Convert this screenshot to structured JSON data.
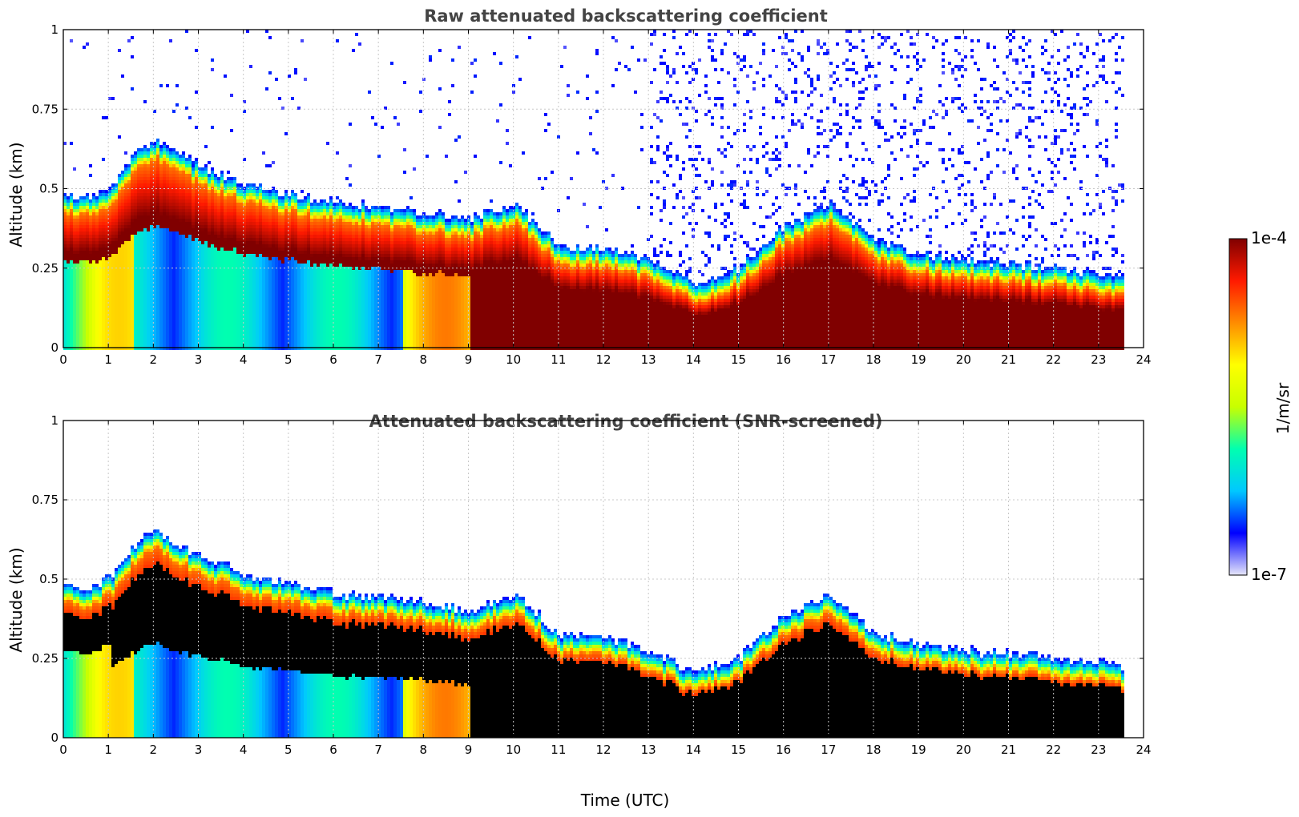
{
  "chart_data": [
    {
      "type": "heatmap",
      "title": "Raw attenuated backscattering coefficient",
      "xlabel": "",
      "ylabel": "Altitude (km)",
      "xlim": [
        0,
        24
      ],
      "ylim": [
        0,
        1
      ],
      "x_ticks": [
        "0",
        "1",
        "2",
        "3",
        "4",
        "5",
        "6",
        "7",
        "8",
        "9",
        "10",
        "11",
        "12",
        "13",
        "14",
        "15",
        "16",
        "17",
        "18",
        "19",
        "20",
        "21",
        "22",
        "23",
        "24"
      ],
      "y_ticks": [
        "0",
        "0.25",
        "0.5",
        "0.75",
        "1"
      ],
      "grid": true,
      "screened": false,
      "data_end_hour": 23.55,
      "layer_top_km_by_hour": [
        {
          "x": 0.5,
          "y": 0.42
        },
        {
          "x": 1,
          "y": 0.45
        },
        {
          "x": 1.5,
          "y": 0.55
        },
        {
          "x": 2,
          "y": 0.6
        },
        {
          "x": 3,
          "y": 0.52
        },
        {
          "x": 4,
          "y": 0.46
        },
        {
          "x": 5,
          "y": 0.43
        },
        {
          "x": 6,
          "y": 0.4
        },
        {
          "x": 7,
          "y": 0.39
        },
        {
          "x": 8,
          "y": 0.37
        },
        {
          "x": 9,
          "y": 0.35
        },
        {
          "x": 10,
          "y": 0.4
        },
        {
          "x": 11,
          "y": 0.27
        },
        {
          "x": 12,
          "y": 0.26
        },
        {
          "x": 13,
          "y": 0.22
        },
        {
          "x": 14,
          "y": 0.15
        },
        {
          "x": 15,
          "y": 0.2
        },
        {
          "x": 16,
          "y": 0.33
        },
        {
          "x": 17,
          "y": 0.4
        },
        {
          "x": 18,
          "y": 0.28
        },
        {
          "x": 19,
          "y": 0.24
        },
        {
          "x": 20,
          "y": 0.22
        },
        {
          "x": 21,
          "y": 0.21
        },
        {
          "x": 22,
          "y": 0.2
        },
        {
          "x": 23,
          "y": 0.18
        },
        {
          "x": 23.55,
          "y": 0.17
        }
      ]
    },
    {
      "type": "heatmap",
      "title": "Attenuated backscattering coefficient (SNR-screened)",
      "xlabel": "Time (UTC)",
      "ylabel": "Altitude (km)",
      "xlim": [
        0,
        24
      ],
      "ylim": [
        0,
        1
      ],
      "x_ticks": [
        "0",
        "1",
        "2",
        "3",
        "4",
        "5",
        "6",
        "7",
        "8",
        "9",
        "10",
        "11",
        "12",
        "13",
        "14",
        "15",
        "16",
        "17",
        "18",
        "19",
        "20",
        "21",
        "22",
        "23",
        "24"
      ],
      "y_ticks": [
        "0",
        "0.25",
        "0.5",
        "0.75",
        "1"
      ],
      "grid": true,
      "screened": true,
      "data_end_hour": 23.55,
      "layer_top_km_by_hour": [
        {
          "x": 0.5,
          "y": 0.42
        },
        {
          "x": 1,
          "y": 0.45
        },
        {
          "x": 1.5,
          "y": 0.55
        },
        {
          "x": 2,
          "y": 0.6
        },
        {
          "x": 3,
          "y": 0.52
        },
        {
          "x": 4,
          "y": 0.46
        },
        {
          "x": 5,
          "y": 0.43
        },
        {
          "x": 6,
          "y": 0.4
        },
        {
          "x": 7,
          "y": 0.39
        },
        {
          "x": 8,
          "y": 0.37
        },
        {
          "x": 9,
          "y": 0.35
        },
        {
          "x": 10,
          "y": 0.4
        },
        {
          "x": 11,
          "y": 0.27
        },
        {
          "x": 12,
          "y": 0.26
        },
        {
          "x": 13,
          "y": 0.22
        },
        {
          "x": 14,
          "y": 0.15
        },
        {
          "x": 15,
          "y": 0.2
        },
        {
          "x": 16,
          "y": 0.33
        },
        {
          "x": 17,
          "y": 0.4
        },
        {
          "x": 18,
          "y": 0.28
        },
        {
          "x": 19,
          "y": 0.24
        },
        {
          "x": 20,
          "y": 0.22
        },
        {
          "x": 21,
          "y": 0.21
        },
        {
          "x": 22,
          "y": 0.2
        },
        {
          "x": 23,
          "y": 0.18
        },
        {
          "x": 23.55,
          "y": 0.17
        }
      ]
    }
  ],
  "colorbar": {
    "label": "1/m/sr",
    "max_label": "1e-4",
    "min_label": "1e-7",
    "scale": "log",
    "range": [
      1e-07,
      0.0001
    ],
    "colormap": "jet",
    "colors": [
      "#e6e6fa",
      "#0000ff",
      "#00c8ff",
      "#00ffb0",
      "#c8ff00",
      "#ffff00",
      "#ff8c00",
      "#ff1a00",
      "#800000"
    ]
  }
}
